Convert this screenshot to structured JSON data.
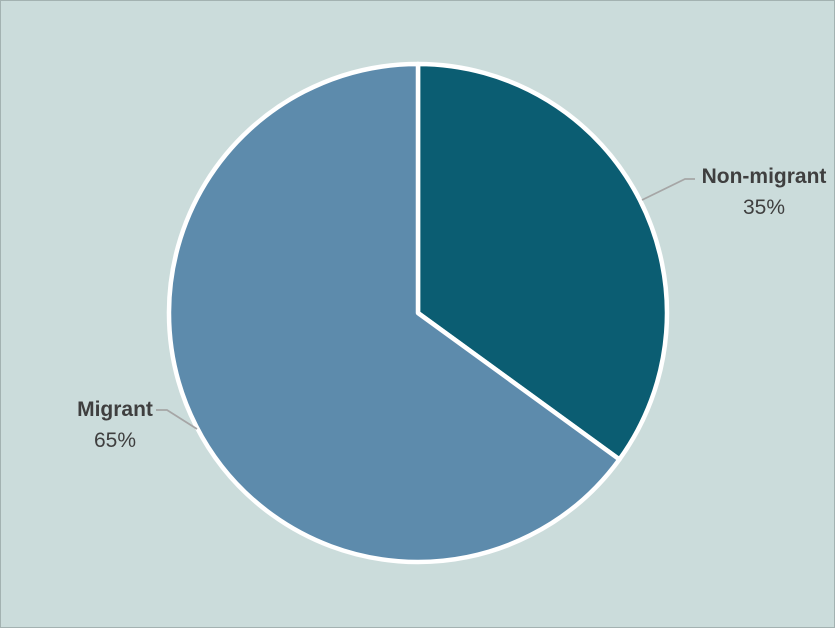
{
  "chart_data": {
    "type": "pie",
    "title": "",
    "categories": [
      "Non-migrant",
      "Migrant"
    ],
    "values": [
      35,
      65
    ],
    "display_values": [
      "35%",
      "65%"
    ],
    "unit": "%",
    "colors": [
      "#0B5D72",
      "#5D8BAC"
    ],
    "start_angle_deg": 0,
    "direction": "clockwise",
    "legend_position": "none",
    "data_labels": "category name and percentage, outside with leader lines",
    "background_color": "#CBDCDB",
    "slice_border_color": "#FFFFFF",
    "leader_line_color": "#A6A6A6",
    "label_color": "#3F3F3F"
  }
}
